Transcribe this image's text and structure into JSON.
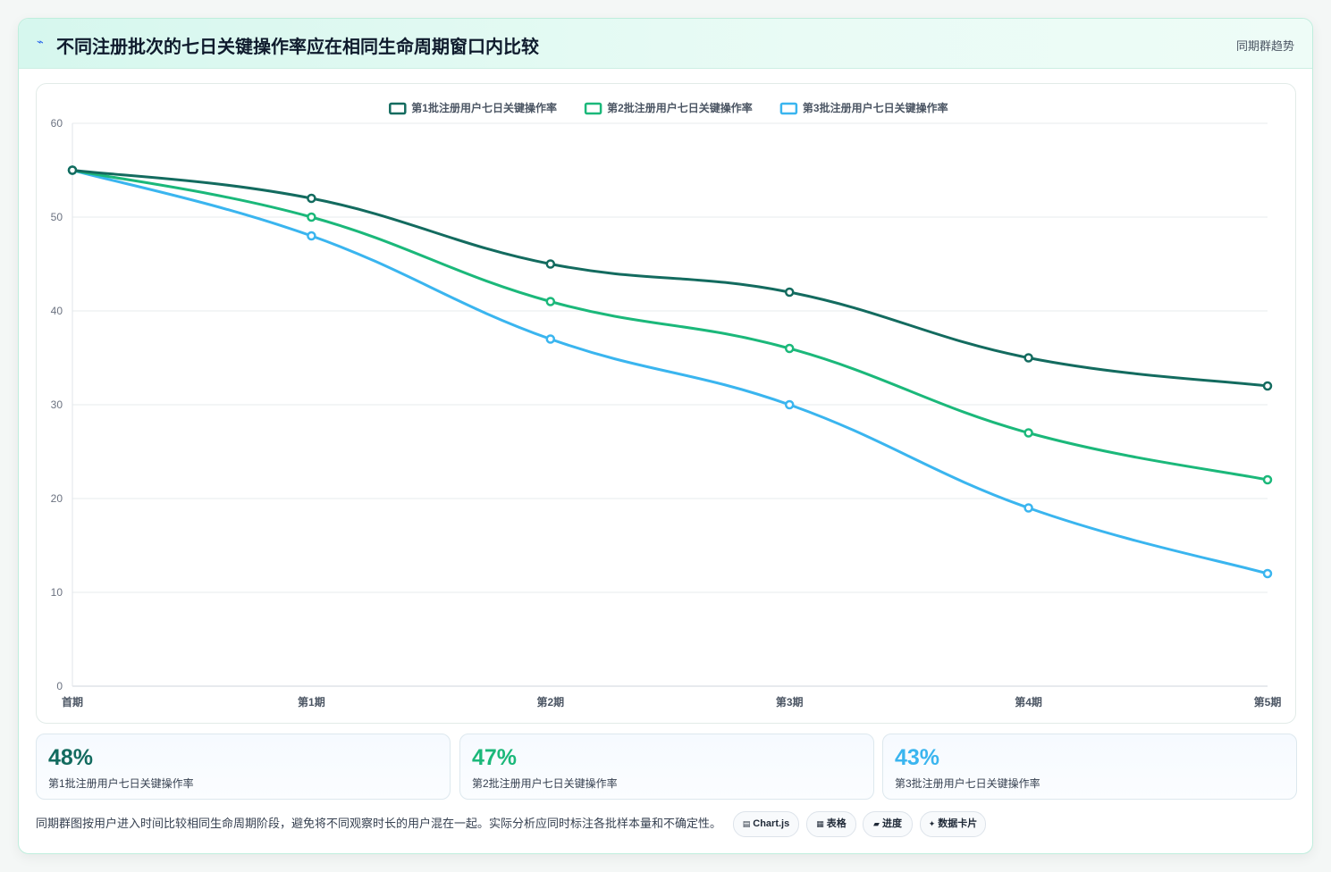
{
  "header": {
    "icon": "chart-line-icon",
    "title": "不同注册批次的七日关键操作率应在相同生命周期窗口内比较",
    "tag": "同期群趋势"
  },
  "chart_data": {
    "type": "line",
    "categories": [
      "首期",
      "第1期",
      "第2期",
      "第3期",
      "第4期",
      "第5期"
    ],
    "series": [
      {
        "name": "第1批注册用户七日关键操作率",
        "color": "#136b5f",
        "values": [
          55,
          52,
          45,
          42,
          35,
          32
        ]
      },
      {
        "name": "第2批注册用户七日关键操作率",
        "color": "#1bb87a",
        "values": [
          55,
          50,
          41,
          36,
          27,
          22
        ]
      },
      {
        "name": "第3批注册用户七日关键操作率",
        "color": "#3ab5ef",
        "values": [
          55,
          48,
          37,
          30,
          19,
          12
        ]
      }
    ],
    "ylim": [
      0,
      60
    ],
    "yticks": [
      0,
      10,
      20,
      30,
      40,
      50,
      60
    ],
    "grid": true,
    "legend": "top-center"
  },
  "stats": [
    {
      "value": "48%",
      "label": "第1批注册用户七日关键操作率",
      "color": "#136b5f"
    },
    {
      "value": "47%",
      "label": "第2批注册用户七日关键操作率",
      "color": "#1bb87a"
    },
    {
      "value": "43%",
      "label": "第3批注册用户七日关键操作率",
      "color": "#3ab5ef"
    }
  ],
  "footer": {
    "note": "同期群图按用户进入时间比较相同生命周期阶段，避免将不同观察时长的用户混在一起。实际分析应同时标注各批样本量和不确定性。",
    "chips": [
      {
        "icon": "▤",
        "label": "Chart.js"
      },
      {
        "icon": "▦",
        "label": "表格"
      },
      {
        "icon": "▰",
        "label": "进度"
      },
      {
        "icon": "✦",
        "label": "数据卡片"
      }
    ]
  }
}
